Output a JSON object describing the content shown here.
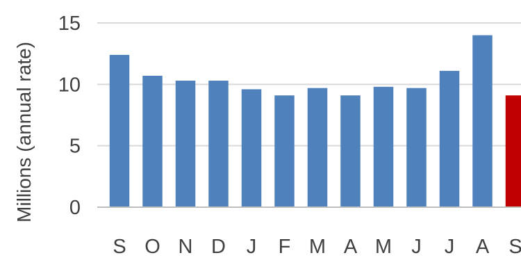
{
  "chart_data": {
    "type": "bar",
    "ylabel": "Millions (annual rate)",
    "ylim": [
      0,
      15
    ],
    "yticks": [
      0,
      5,
      10,
      15
    ],
    "grid": true,
    "categories": [
      "S",
      "O",
      "N",
      "D",
      "J",
      "F",
      "M",
      "A",
      "M",
      "J",
      "J",
      "A",
      "S"
    ],
    "values": [
      12.4,
      10.7,
      10.3,
      10.3,
      9.6,
      9.1,
      9.7,
      9.1,
      9.8,
      9.7,
      11.1,
      14.0,
      9.1
    ],
    "bar_colors": [
      "#4f81bd",
      "#4f81bd",
      "#4f81bd",
      "#4f81bd",
      "#4f81bd",
      "#4f81bd",
      "#4f81bd",
      "#4f81bd",
      "#4f81bd",
      "#4f81bd",
      "#4f81bd",
      "#4f81bd",
      "#c00000"
    ]
  }
}
